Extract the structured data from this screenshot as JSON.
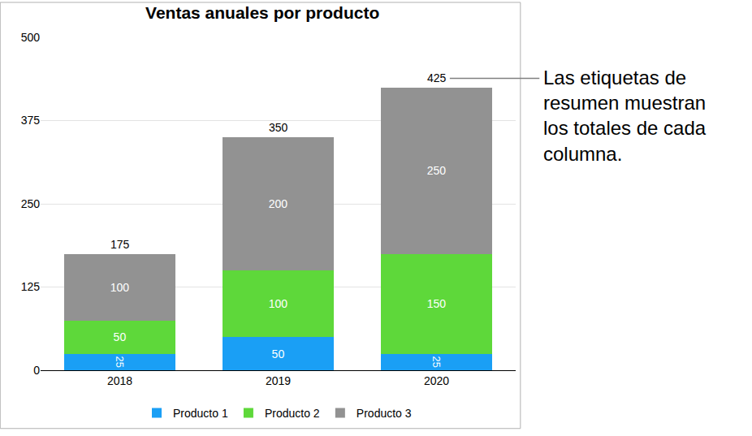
{
  "chart_data": {
    "type": "bar",
    "title": "Ventas anuales por producto",
    "categories": [
      "2018",
      "2019",
      "2020"
    ],
    "series": [
      {
        "name": "Producto 1",
        "color": "#1a9ff5",
        "values": [
          25,
          50,
          25
        ]
      },
      {
        "name": "Producto 2",
        "color": "#5ed83a",
        "values": [
          50,
          100,
          150
        ]
      },
      {
        "name": "Producto 3",
        "color": "#929292",
        "values": [
          100,
          200,
          250
        ]
      }
    ],
    "totals": [
      175,
      350,
      425
    ],
    "stacked": true,
    "data_labels": true,
    "ylim": [
      0,
      500
    ],
    "yticks": [
      0,
      125,
      250,
      375,
      500
    ],
    "grid": true,
    "legend": "bottom",
    "annotation": {
      "text": "Las etiquetas de\nresumen muestran\nlos totales de cada\ncolumna.",
      "category": "2020"
    }
  }
}
